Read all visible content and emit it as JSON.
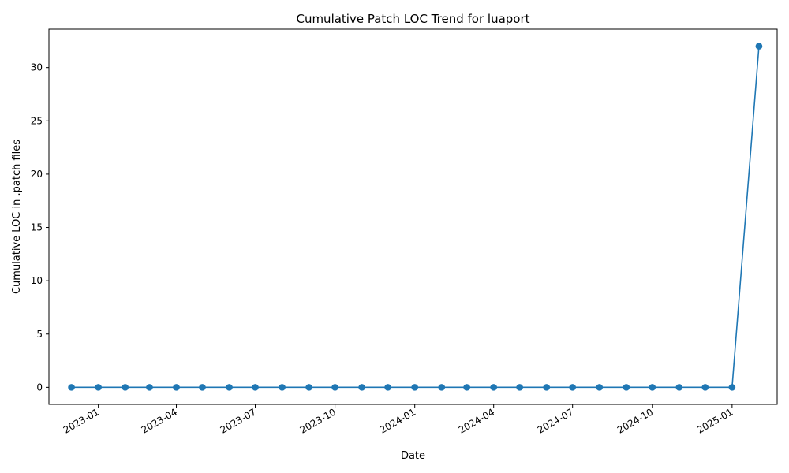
{
  "chart_data": {
    "type": "line",
    "title": "Cumulative Patch LOC Trend for luaport",
    "xlabel": "Date",
    "ylabel": "Cumulative LOC in .patch files",
    "x_tick_labels": [
      "2023-01",
      "2023-04",
      "2023-07",
      "2023-10",
      "2024-01",
      "2024-04",
      "2024-07",
      "2024-10",
      "2025-01"
    ],
    "x_ticks": [
      "2023-01-01",
      "2023-04-01",
      "2023-07-01",
      "2023-10-01",
      "2024-01-01",
      "2024-04-01",
      "2024-07-01",
      "2024-10-01",
      "2025-01-01"
    ],
    "y_ticks": [
      0,
      5,
      10,
      15,
      20,
      25,
      30
    ],
    "xlim": [
      "2022-11-05",
      "2025-02-22"
    ],
    "ylim": [
      -1.6,
      33.6
    ],
    "grid": false,
    "series": [
      {
        "color": "#1f77b4",
        "marker": "circle",
        "points": [
          {
            "x": "2022-12-01",
            "y": 0
          },
          {
            "x": "2023-01-01",
            "y": 0
          },
          {
            "x": "2023-02-01",
            "y": 0
          },
          {
            "x": "2023-03-01",
            "y": 0
          },
          {
            "x": "2023-04-01",
            "y": 0
          },
          {
            "x": "2023-05-01",
            "y": 0
          },
          {
            "x": "2023-06-01",
            "y": 0
          },
          {
            "x": "2023-07-01",
            "y": 0
          },
          {
            "x": "2023-08-01",
            "y": 0
          },
          {
            "x": "2023-09-01",
            "y": 0
          },
          {
            "x": "2023-10-01",
            "y": 0
          },
          {
            "x": "2023-11-01",
            "y": 0
          },
          {
            "x": "2023-12-01",
            "y": 0
          },
          {
            "x": "2024-01-01",
            "y": 0
          },
          {
            "x": "2024-02-01",
            "y": 0
          },
          {
            "x": "2024-03-01",
            "y": 0
          },
          {
            "x": "2024-04-01",
            "y": 0
          },
          {
            "x": "2024-05-01",
            "y": 0
          },
          {
            "x": "2024-06-01",
            "y": 0
          },
          {
            "x": "2024-07-01",
            "y": 0
          },
          {
            "x": "2024-08-01",
            "y": 0
          },
          {
            "x": "2024-09-01",
            "y": 0
          },
          {
            "x": "2024-10-01",
            "y": 0
          },
          {
            "x": "2024-11-01",
            "y": 0
          },
          {
            "x": "2024-12-01",
            "y": 0
          },
          {
            "x": "2025-01-01",
            "y": 0
          },
          {
            "x": "2025-02-01",
            "y": 32
          }
        ]
      }
    ]
  }
}
